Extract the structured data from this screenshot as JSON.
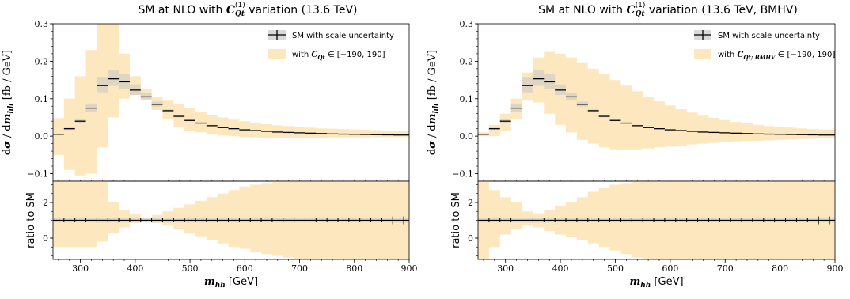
{
  "colors": {
    "band": "#fde7be",
    "scale": "#c9c9c9",
    "line": "#000000",
    "frame": "#000000"
  },
  "panels": [
    {
      "title": "SM at NLO with C_Qt^(1) variation (13.6 TeV)",
      "title_parts": [
        "SM at NLO with ",
        "C",
        "Qt",
        "(1)",
        " variation (13.6 TeV)"
      ],
      "legend": {
        "sm": "SM with scale uncertainty",
        "band_prefix": "with ",
        "band_sub": "Qt",
        "band_range": " ∈ [−190, 190]"
      }
    },
    {
      "title": "SM at NLO with C_Qt^(1) variation (13.6 TeV, BMHV)",
      "title_parts": [
        "SM at NLO with ",
        "C",
        "Qt",
        "(1)",
        " variation (13.6 TeV, BMHV)"
      ],
      "legend": {
        "sm": "SM with scale uncertainty",
        "band_prefix": "with ",
        "band_sub": "Qt; BMHV",
        "band_range": " ∈ [−190, 190]"
      }
    }
  ],
  "axes": {
    "ylabel_main": "dσ / dm_hh  [fb / GeV]",
    "ylabel_main_parts": [
      "d",
      "σ",
      " / d",
      "m",
      "hh",
      "   [fb / GeV]"
    ],
    "ylabel_ratio": "ratio to SM",
    "xlabel_parts": [
      "m",
      "hh",
      " [GeV]"
    ],
    "xticks": [
      "300",
      "400",
      "500",
      "600",
      "700",
      "800",
      "900"
    ],
    "yticks_main": [
      "−0.1",
      "0.0",
      "0.1",
      "0.2",
      "0.3"
    ],
    "yticks_ratio": [
      "0",
      "2"
    ]
  },
  "chart_data": [
    {
      "type": "step-histogram",
      "title": "SM at NLO with C_Qt^(1) variation (13.6 TeV)",
      "xlabel": "m_hh [GeV]",
      "ylabel": "dσ / dm_hh [fb / GeV]",
      "ratio_ylabel": "ratio to SM",
      "xlim": [
        250,
        900
      ],
      "ylim": [
        -0.12,
        0.3
      ],
      "ratio_ylim": [
        -1.2,
        3.2
      ],
      "bin_edges": [
        250,
        270,
        290,
        310,
        330,
        350,
        370,
        390,
        410,
        430,
        450,
        470,
        490,
        510,
        530,
        550,
        570,
        590,
        610,
        630,
        650,
        670,
        690,
        710,
        730,
        750,
        770,
        790,
        810,
        830,
        850,
        870,
        890,
        900
      ],
      "sm": [
        0.005,
        0.02,
        0.04,
        0.075,
        0.135,
        0.153,
        0.145,
        0.123,
        0.105,
        0.085,
        0.068,
        0.053,
        0.042,
        0.035,
        0.028,
        0.023,
        0.02,
        0.017,
        0.015,
        0.013,
        0.011,
        0.01,
        0.009,
        0.008,
        0.007,
        0.006,
        0.0055,
        0.005,
        0.0045,
        0.004,
        0.0035,
        0.003,
        0.003
      ],
      "scale_lo": [
        0.004,
        0.017,
        0.035,
        0.065,
        0.117,
        0.134,
        0.127,
        0.11,
        0.096,
        0.079,
        0.064,
        0.05,
        0.04,
        0.033,
        0.027,
        0.022,
        0.019,
        0.016,
        0.014,
        0.012,
        0.01,
        0.009,
        0.0085,
        0.0075,
        0.0065,
        0.0055,
        0.005,
        0.0045,
        0.004,
        0.0037,
        0.0032,
        0.0028,
        0.0028
      ],
      "scale_hi": [
        0.006,
        0.023,
        0.046,
        0.087,
        0.158,
        0.177,
        0.166,
        0.138,
        0.116,
        0.092,
        0.072,
        0.056,
        0.044,
        0.037,
        0.03,
        0.025,
        0.021,
        0.018,
        0.016,
        0.014,
        0.012,
        0.011,
        0.0095,
        0.0085,
        0.0075,
        0.0065,
        0.006,
        0.0055,
        0.005,
        0.0043,
        0.0038,
        0.0032,
        0.0032
      ],
      "band_lo": [
        -0.05,
        -0.09,
        -0.105,
        -0.1,
        -0.03,
        0.05,
        0.1,
        0.11,
        0.1,
        0.07,
        0.045,
        0.025,
        0.015,
        0.01,
        0.005,
        0.002,
        0.0,
        -0.002,
        -0.003,
        -0.004,
        -0.004,
        -0.004,
        -0.004,
        -0.004,
        -0.004,
        -0.003,
        -0.003,
        -0.003,
        -0.003,
        -0.002,
        -0.002,
        -0.002,
        -0.002
      ],
      "band_hi": [
        0.048,
        0.1,
        0.16,
        0.23,
        0.3,
        0.3,
        0.22,
        0.16,
        0.125,
        0.105,
        0.095,
        0.085,
        0.075,
        0.065,
        0.057,
        0.05,
        0.044,
        0.04,
        0.036,
        0.032,
        0.029,
        0.027,
        0.025,
        0.023,
        0.021,
        0.02,
        0.019,
        0.018,
        0.017,
        0.016,
        0.015,
        0.014,
        0.014
      ],
      "ratio_lo": [
        -0.5,
        -0.5,
        -0.5,
        -0.5,
        -0.2,
        0.3,
        0.6,
        0.85,
        0.95,
        0.85,
        0.7,
        0.5,
        0.3,
        0.1,
        -0.1,
        -0.3,
        -0.5,
        -0.6,
        -0.8,
        -0.9,
        -1.0,
        -1.1,
        -1.2,
        -1.2,
        -1.2,
        -1.2,
        -1.2,
        -1.2,
        -1.2,
        -1.2,
        -1.2,
        -1.2,
        -1.2
      ],
      "ratio_hi": [
        3.2,
        3.2,
        3.2,
        3.2,
        3.2,
        2.0,
        1.6,
        1.35,
        1.1,
        1.3,
        1.5,
        1.7,
        1.9,
        2.1,
        2.3,
        2.5,
        2.7,
        2.9,
        3.0,
        3.1,
        3.2,
        3.2,
        3.2,
        3.2,
        3.2,
        3.2,
        3.2,
        3.2,
        3.2,
        3.2,
        3.2,
        3.2,
        3.2
      ],
      "legend": [
        "SM with scale uncertainty",
        "with C_Qt^(1) ∈ [−190, 190]"
      ]
    },
    {
      "type": "step-histogram",
      "title": "SM at NLO with C_Qt^(1) variation (13.6 TeV, BMHV)",
      "xlabel": "m_hh [GeV]",
      "ylabel": "dσ / dm_hh [fb / GeV]",
      "ratio_ylabel": "ratio to SM",
      "xlim": [
        250,
        900
      ],
      "ylim": [
        -0.12,
        0.3
      ],
      "ratio_ylim": [
        -1.2,
        3.2
      ],
      "bin_edges": [
        250,
        270,
        290,
        310,
        330,
        350,
        370,
        390,
        410,
        430,
        450,
        470,
        490,
        510,
        530,
        550,
        570,
        590,
        610,
        630,
        650,
        670,
        690,
        710,
        730,
        750,
        770,
        790,
        810,
        830,
        850,
        870,
        890,
        900
      ],
      "sm": [
        0.005,
        0.02,
        0.04,
        0.075,
        0.135,
        0.153,
        0.145,
        0.123,
        0.105,
        0.085,
        0.068,
        0.053,
        0.042,
        0.035,
        0.028,
        0.023,
        0.02,
        0.017,
        0.015,
        0.013,
        0.011,
        0.01,
        0.009,
        0.008,
        0.007,
        0.006,
        0.0055,
        0.005,
        0.0045,
        0.004,
        0.0035,
        0.003,
        0.003
      ],
      "scale_lo": [
        0.004,
        0.017,
        0.035,
        0.065,
        0.117,
        0.134,
        0.127,
        0.11,
        0.096,
        0.079,
        0.064,
        0.05,
        0.04,
        0.033,
        0.027,
        0.022,
        0.019,
        0.016,
        0.014,
        0.012,
        0.01,
        0.009,
        0.0085,
        0.0075,
        0.0065,
        0.0055,
        0.005,
        0.0045,
        0.004,
        0.0037,
        0.0032,
        0.0028,
        0.0028
      ],
      "scale_hi": [
        0.006,
        0.023,
        0.046,
        0.087,
        0.158,
        0.177,
        0.166,
        0.138,
        0.116,
        0.092,
        0.072,
        0.056,
        0.044,
        0.037,
        0.03,
        0.025,
        0.021,
        0.018,
        0.016,
        0.014,
        0.012,
        0.011,
        0.0095,
        0.0085,
        0.0075,
        0.0065,
        0.006,
        0.0055,
        0.005,
        0.0043,
        0.0038,
        0.0032,
        0.0032
      ],
      "band_lo": [
        0.0,
        0.0,
        0.015,
        0.045,
        0.095,
        0.09,
        0.06,
        0.03,
        0.01,
        -0.01,
        -0.02,
        -0.03,
        -0.035,
        -0.035,
        -0.035,
        -0.033,
        -0.03,
        -0.028,
        -0.025,
        -0.022,
        -0.02,
        -0.018,
        -0.016,
        -0.014,
        -0.013,
        -0.012,
        -0.011,
        -0.01,
        -0.009,
        -0.008,
        -0.007,
        -0.006,
        -0.006
      ],
      "band_hi": [
        0.01,
        0.03,
        0.06,
        0.1,
        0.17,
        0.21,
        0.225,
        0.22,
        0.21,
        0.195,
        0.18,
        0.165,
        0.15,
        0.135,
        0.12,
        0.105,
        0.093,
        0.082,
        0.072,
        0.063,
        0.055,
        0.049,
        0.043,
        0.038,
        0.034,
        0.03,
        0.027,
        0.025,
        0.023,
        0.021,
        0.019,
        0.018,
        0.018
      ],
      "ratio_lo": [
        -1.2,
        -0.5,
        0.2,
        0.5,
        0.7,
        0.6,
        0.4,
        0.2,
        0.05,
        -0.1,
        -0.3,
        -0.5,
        -0.7,
        -0.9,
        -1.1,
        -1.2,
        -1.2,
        -1.2,
        -1.2,
        -1.2,
        -1.2,
        -1.2,
        -1.2,
        -1.2,
        -1.2,
        -1.2,
        -1.2,
        -1.2,
        -1.2,
        -1.2,
        -1.2,
        -1.2,
        -1.2
      ],
      "ratio_hi": [
        3.2,
        2.7,
        2.3,
        2.0,
        1.5,
        1.4,
        1.6,
        1.8,
        2.0,
        2.3,
        2.6,
        2.8,
        3.0,
        3.1,
        3.2,
        3.2,
        3.2,
        3.2,
        3.2,
        3.2,
        3.2,
        3.2,
        3.2,
        3.2,
        3.2,
        3.2,
        3.2,
        3.2,
        3.2,
        3.2,
        3.2,
        3.2,
        3.2
      ],
      "legend": [
        "SM with scale uncertainty",
        "with C_Qt;BMHV^(1) ∈ [−190, 190]"
      ]
    }
  ]
}
